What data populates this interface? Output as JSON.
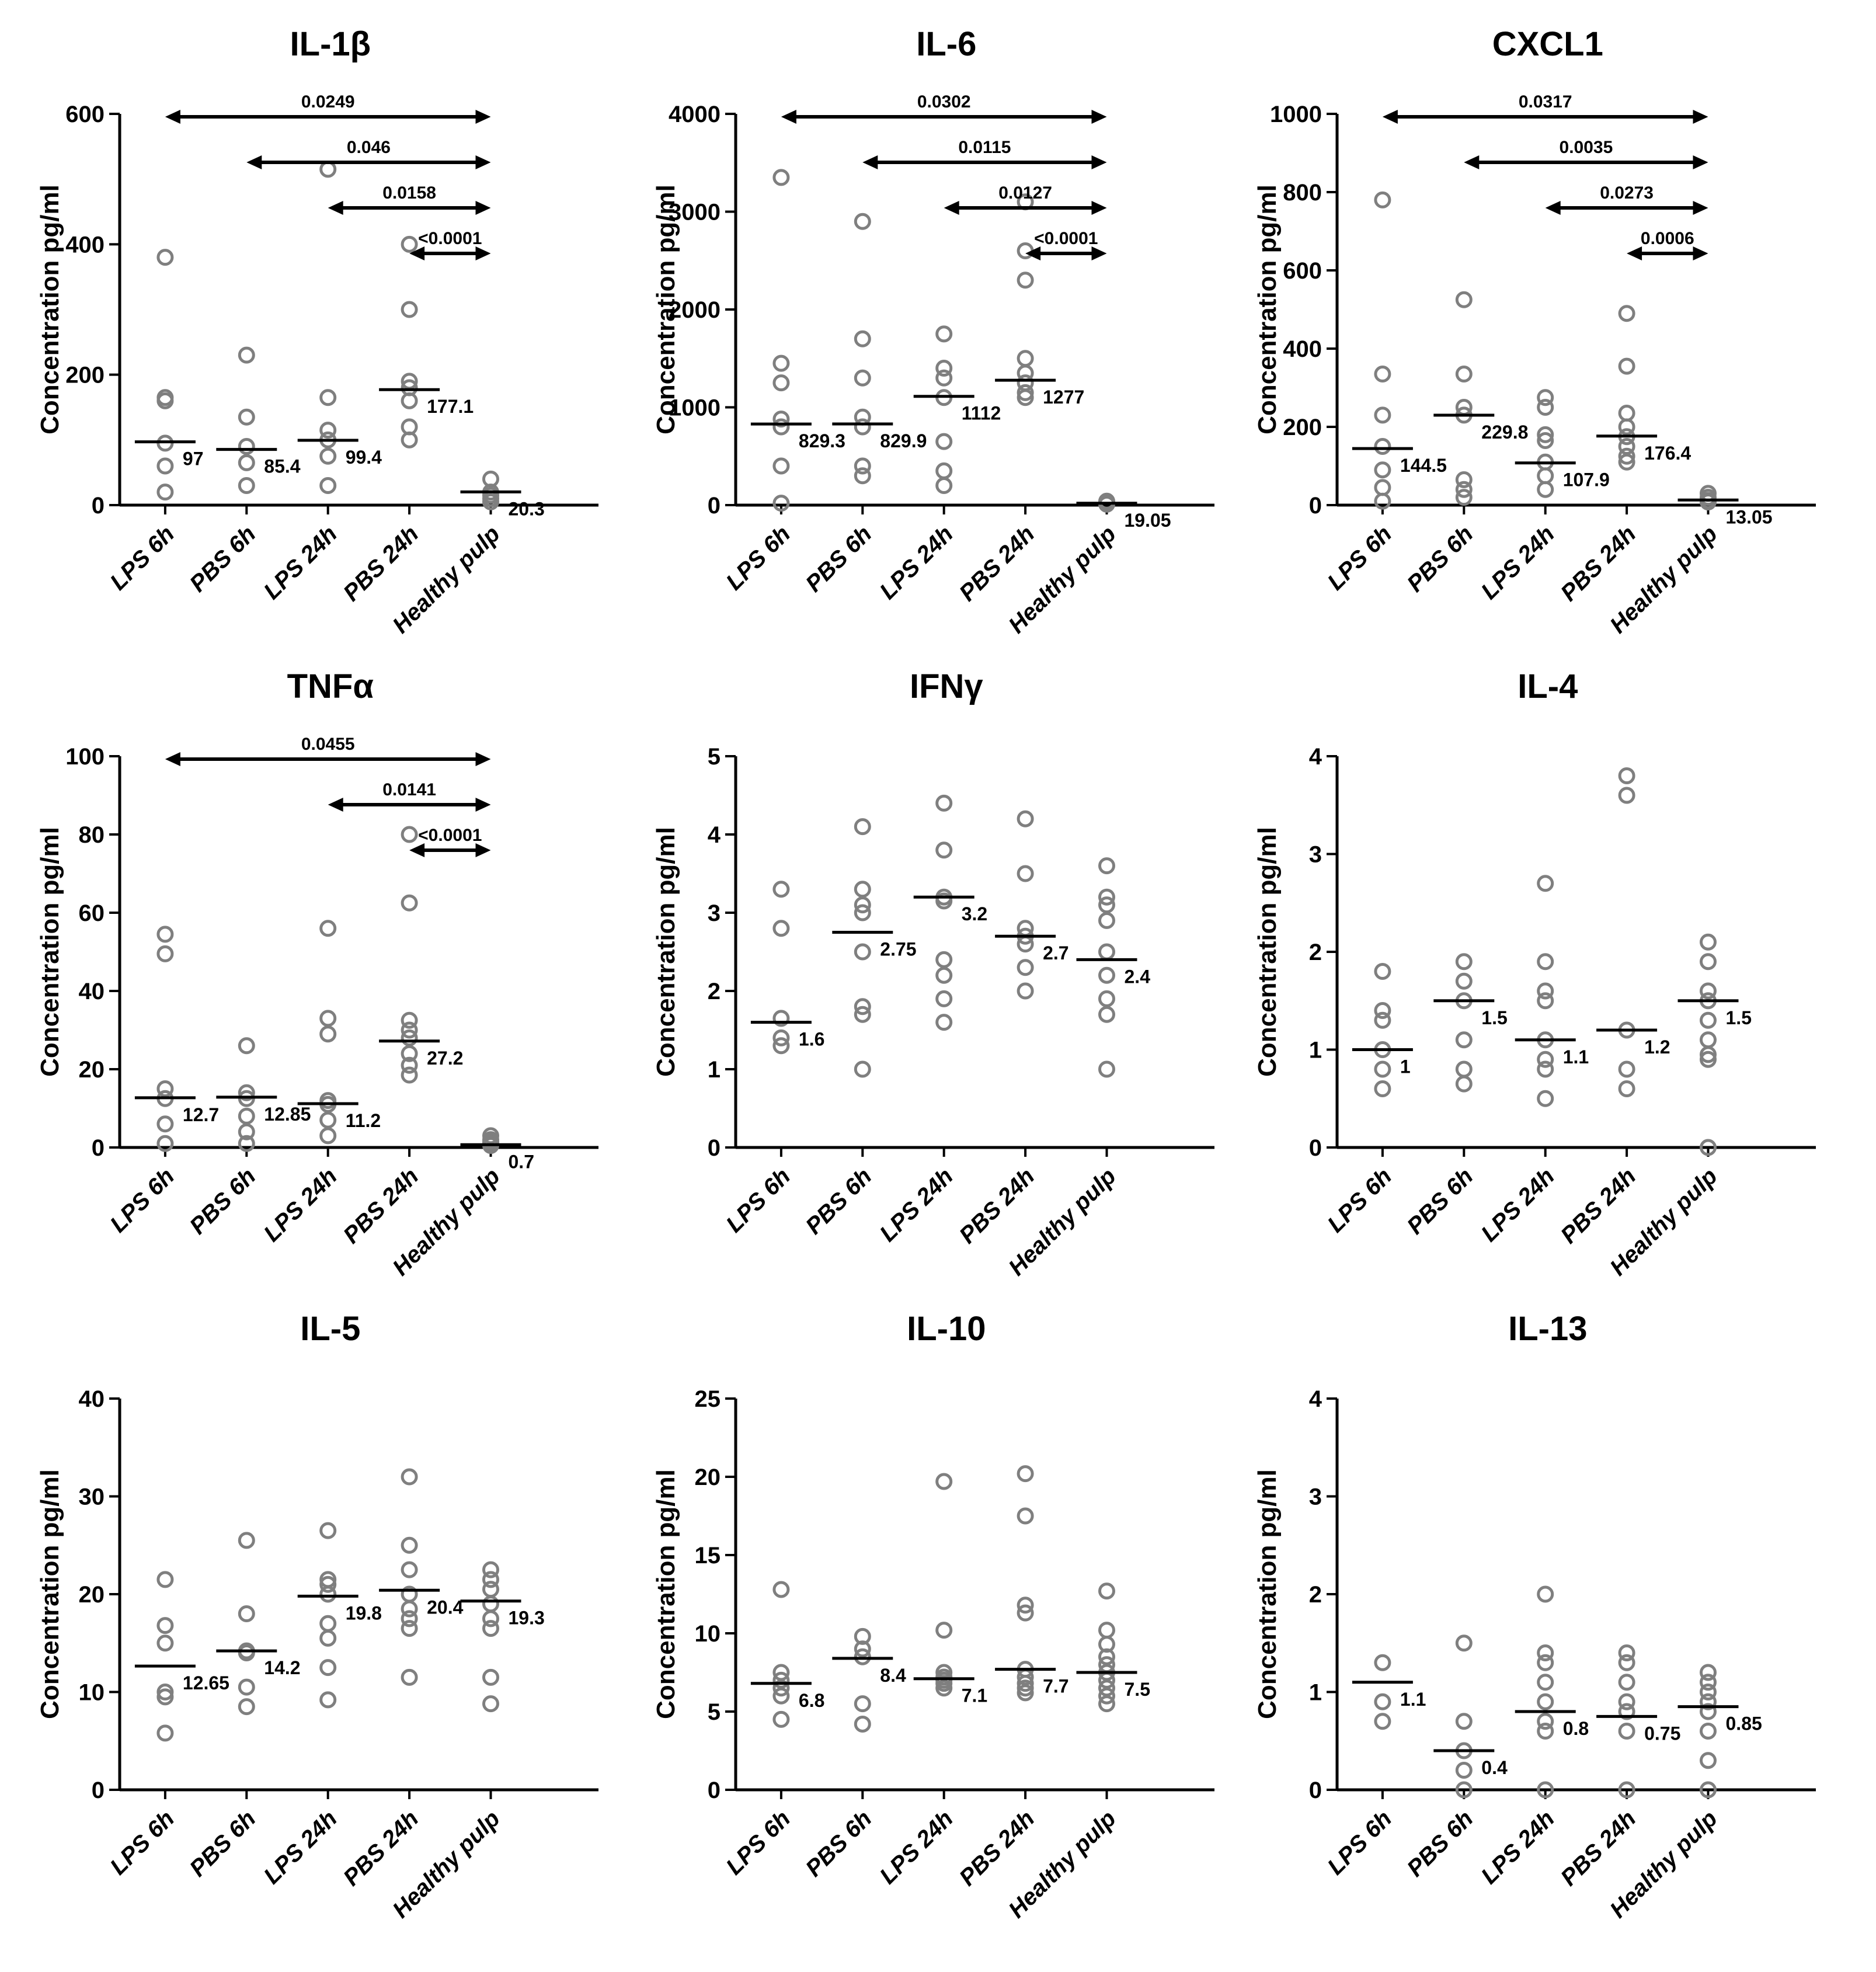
{
  "chart_data": [
    {
      "type": "scatter",
      "title": "IL-1β",
      "ylabel": "Concentration pg/ml",
      "ylim": [
        0,
        600
      ],
      "yticks": [
        0,
        200,
        400,
        600
      ],
      "categories": [
        "LPS 6h",
        "PBS 6h",
        "LPS 24h",
        "PBS 24h",
        "Healthy pulp"
      ],
      "points": [
        [
          380,
          165,
          160,
          95,
          60,
          20
        ],
        [
          230,
          135,
          90,
          65,
          30
        ],
        [
          515,
          165,
          115,
          100,
          75,
          30
        ],
        [
          400,
          300,
          190,
          180,
          160,
          120,
          100
        ],
        [
          40,
          20,
          15,
          10,
          5
        ]
      ],
      "medians": [
        97,
        85.4,
        99.4,
        177.1,
        20.3
      ],
      "median_labels": [
        "97",
        "85.4",
        "99.4",
        "177.1",
        "20.3"
      ],
      "significance": [
        {
          "from": 0,
          "to": 4,
          "label": "0.0249"
        },
        {
          "from": 1,
          "to": 4,
          "label": "0.046"
        },
        {
          "from": 2,
          "to": 4,
          "label": "0.0158"
        },
        {
          "from": 3,
          "to": 4,
          "label": "<0.0001"
        }
      ]
    },
    {
      "type": "scatter",
      "title": "IL-6",
      "ylabel": "Concentration pg/ml",
      "ylim": [
        0,
        4000
      ],
      "yticks": [
        0,
        1000,
        2000,
        3000,
        4000
      ],
      "categories": [
        "LPS 6h",
        "PBS 6h",
        "LPS 24h",
        "PBS 24h",
        "Healthy pulp"
      ],
      "points": [
        [
          3350,
          1450,
          1250,
          880,
          800,
          400,
          20
        ],
        [
          2900,
          1700,
          1300,
          900,
          800,
          400,
          300
        ],
        [
          1750,
          1400,
          1300,
          1100,
          650,
          350,
          200
        ],
        [
          3100,
          2600,
          2300,
          1500,
          1350,
          1250,
          1150,
          1100
        ],
        [
          40,
          20,
          10
        ]
      ],
      "medians": [
        829.3,
        829.9,
        1112,
        1277,
        19.05
      ],
      "median_labels": [
        "829.3",
        "829.9",
        "1112",
        "1277",
        "19.05"
      ],
      "significance": [
        {
          "from": 0,
          "to": 4,
          "label": "0.0302"
        },
        {
          "from": 1,
          "to": 4,
          "label": "0.0115"
        },
        {
          "from": 2,
          "to": 4,
          "label": "0.0127"
        },
        {
          "from": 3,
          "to": 4,
          "label": "<0.0001"
        }
      ]
    },
    {
      "type": "scatter",
      "title": "CXCL1",
      "ylabel": "Concentration pg/ml",
      "ylim": [
        0,
        1000
      ],
      "yticks": [
        0,
        200,
        400,
        600,
        800,
        1000
      ],
      "categories": [
        "LPS 6h",
        "PBS 6h",
        "LPS 24h",
        "PBS 24h",
        "Healthy pulp"
      ],
      "points": [
        [
          780,
          335,
          230,
          150,
          90,
          45,
          10
        ],
        [
          525,
          335,
          250,
          230,
          65,
          40,
          20
        ],
        [
          275,
          250,
          180,
          165,
          110,
          75,
          40
        ],
        [
          490,
          355,
          235,
          200,
          175,
          150,
          125,
          110
        ],
        [
          30,
          20,
          12,
          8
        ]
      ],
      "medians": [
        144.5,
        229.8,
        107.9,
        176.4,
        13.05
      ],
      "median_labels": [
        "144.5",
        "229.8",
        "107.9",
        "176.4",
        "13.05"
      ],
      "significance": [
        {
          "from": 0,
          "to": 4,
          "label": "0.0317"
        },
        {
          "from": 1,
          "to": 4,
          "label": "0.0035"
        },
        {
          "from": 2,
          "to": 4,
          "label": "0.0273"
        },
        {
          "from": 3,
          "to": 4,
          "label": "0.0006"
        }
      ]
    },
    {
      "type": "scatter",
      "title": "TNFα",
      "ylabel": "Concentration pg/ml",
      "ylim": [
        0,
        100
      ],
      "yticks": [
        0,
        20,
        40,
        60,
        80,
        100
      ],
      "categories": [
        "LPS 6h",
        "PBS 6h",
        "LPS 24h",
        "PBS 24h",
        "Healthy pulp"
      ],
      "points": [
        [
          54.5,
          49.5,
          15,
          12.5,
          6,
          1
        ],
        [
          26,
          14,
          12.5,
          8,
          4,
          1
        ],
        [
          56,
          33,
          29,
          12,
          11,
          7,
          3
        ],
        [
          80,
          62.5,
          32.5,
          30,
          28,
          24,
          21,
          18.5
        ],
        [
          3,
          2,
          1.5,
          1,
          0.5
        ]
      ],
      "medians": [
        12.7,
        12.85,
        11.2,
        27.2,
        0.7
      ],
      "median_labels": [
        "12.7",
        "12.85",
        "11.2",
        "27.2",
        "0.7"
      ],
      "significance": [
        {
          "from": 0,
          "to": 4,
          "label": "0.0455"
        },
        {
          "from": 2,
          "to": 4,
          "label": "0.0141"
        },
        {
          "from": 3,
          "to": 4,
          "label": "<0.0001"
        }
      ]
    },
    {
      "type": "scatter",
      "title": "IFNγ",
      "ylabel": "Concentration pg/ml",
      "ylim": [
        0,
        5
      ],
      "yticks": [
        0,
        1,
        2,
        3,
        4,
        5
      ],
      "categories": [
        "LPS 6h",
        "PBS 6h",
        "LPS 24h",
        "PBS 24h",
        "Healthy pulp"
      ],
      "points": [
        [
          3.3,
          2.8,
          1.65,
          1.4,
          1.3
        ],
        [
          4.1,
          3.3,
          3.1,
          3.0,
          2.5,
          1.8,
          1.7,
          1.0
        ],
        [
          4.4,
          3.8,
          3.2,
          3.15,
          2.4,
          2.2,
          1.9,
          1.6
        ],
        [
          4.2,
          3.5,
          2.8,
          2.7,
          2.6,
          2.3,
          2.0
        ],
        [
          3.6,
          3.2,
          3.1,
          2.9,
          2.5,
          2.2,
          1.9,
          1.7,
          1.0
        ]
      ],
      "medians": [
        1.6,
        2.75,
        3.2,
        2.7,
        2.4
      ],
      "median_labels": [
        "1.6",
        "2.75",
        "3.2",
        "2.7",
        "2.4"
      ],
      "significance": []
    },
    {
      "type": "scatter",
      "title": "IL-4",
      "ylabel": "Concentration pg/ml",
      "ylim": [
        0,
        4
      ],
      "yticks": [
        0,
        1,
        2,
        3,
        4
      ],
      "categories": [
        "LPS 6h",
        "PBS 6h",
        "LPS 24h",
        "PBS 24h",
        "Healthy pulp"
      ],
      "points": [
        [
          1.8,
          1.4,
          1.3,
          1.0,
          0.8,
          0.6
        ],
        [
          1.9,
          1.7,
          1.5,
          1.1,
          0.8,
          0.65
        ],
        [
          2.7,
          1.9,
          1.6,
          1.5,
          1.1,
          0.9,
          0.8,
          0.5
        ],
        [
          3.8,
          3.6,
          1.2,
          0.8,
          0.6
        ],
        [
          2.1,
          1.9,
          1.6,
          1.5,
          1.3,
          1.1,
          0.95,
          0.9,
          0.0
        ]
      ],
      "medians": [
        1,
        1.5,
        1.1,
        1.2,
        1.5
      ],
      "median_labels": [
        "1",
        "1.5",
        "1.1",
        "1.2",
        "1.5"
      ],
      "significance": []
    },
    {
      "type": "scatter",
      "title": "IL-5",
      "ylabel": "Concentration pg/ml",
      "ylim": [
        0,
        40
      ],
      "yticks": [
        0,
        10,
        20,
        30,
        40
      ],
      "categories": [
        "LPS 6h",
        "PBS 6h",
        "LPS 24h",
        "PBS 24h",
        "Healthy pulp"
      ],
      "points": [
        [
          21.5,
          16.8,
          15,
          10,
          9.5,
          5.8
        ],
        [
          25.5,
          18,
          14.2,
          14,
          10.5,
          8.5
        ],
        [
          26.5,
          21.5,
          21,
          20,
          17,
          15.5,
          12.5,
          9.2
        ],
        [
          32,
          25,
          22.5,
          20,
          18.5,
          17.5,
          16.5,
          11.5
        ],
        [
          22.5,
          21.5,
          20.5,
          19,
          17.5,
          16.5,
          11.5,
          8.8
        ]
      ],
      "medians": [
        12.65,
        14.2,
        19.8,
        20.4,
        19.3
      ],
      "median_labels": [
        "12.65",
        "14.2",
        "19.8",
        "20.4",
        "19.3"
      ],
      "significance": []
    },
    {
      "type": "scatter",
      "title": "IL-10",
      "ylabel": "Concentration pg/ml",
      "ylim": [
        0,
        25
      ],
      "yticks": [
        0,
        5,
        10,
        15,
        20,
        25
      ],
      "categories": [
        "LPS 6h",
        "PBS 6h",
        "LPS 24h",
        "PBS 24h",
        "Healthy pulp"
      ],
      "points": [
        [
          12.8,
          7.5,
          7,
          6.5,
          6,
          4.5
        ],
        [
          9.8,
          9,
          8.5,
          5.5,
          4.2
        ],
        [
          19.7,
          10.2,
          7.5,
          7.2,
          7,
          6.8,
          6.5
        ],
        [
          20.2,
          17.5,
          11.8,
          11.3,
          7.7,
          7.2,
          6.8,
          6.5,
          6.2
        ],
        [
          12.7,
          10.2,
          9.3,
          8.5,
          8,
          7.5,
          7,
          6.5,
          6,
          5.5
        ]
      ],
      "medians": [
        6.8,
        8.4,
        7.1,
        7.7,
        7.5
      ],
      "median_labels": [
        "6.8",
        "8.4",
        "7.1",
        "7.7",
        "7.5"
      ],
      "significance": []
    },
    {
      "type": "scatter",
      "title": "IL-13",
      "ylabel": "Concentration pg/ml",
      "ylim": [
        0,
        4
      ],
      "yticks": [
        0,
        1,
        2,
        3,
        4
      ],
      "categories": [
        "LPS 6h",
        "PBS 6h",
        "LPS 24h",
        "PBS 24h",
        "Healthy pulp"
      ],
      "points": [
        [
          1.3,
          0.9,
          0.7
        ],
        [
          1.5,
          0.7,
          0.4,
          0.2,
          0.0
        ],
        [
          2.0,
          1.4,
          1.3,
          1.1,
          0.9,
          0.7,
          0.6,
          0.0
        ],
        [
          1.4,
          1.3,
          1.1,
          0.9,
          0.8,
          0.6,
          0.0
        ],
        [
          1.2,
          1.1,
          1.0,
          0.9,
          0.8,
          0.6,
          0.3,
          0.0
        ]
      ],
      "medians": [
        1.1,
        0.4,
        0.8,
        0.75,
        0.85
      ],
      "median_labels": [
        "1.1",
        "0.4",
        "0.8",
        "0.75",
        "0.85"
      ],
      "significance": []
    }
  ]
}
